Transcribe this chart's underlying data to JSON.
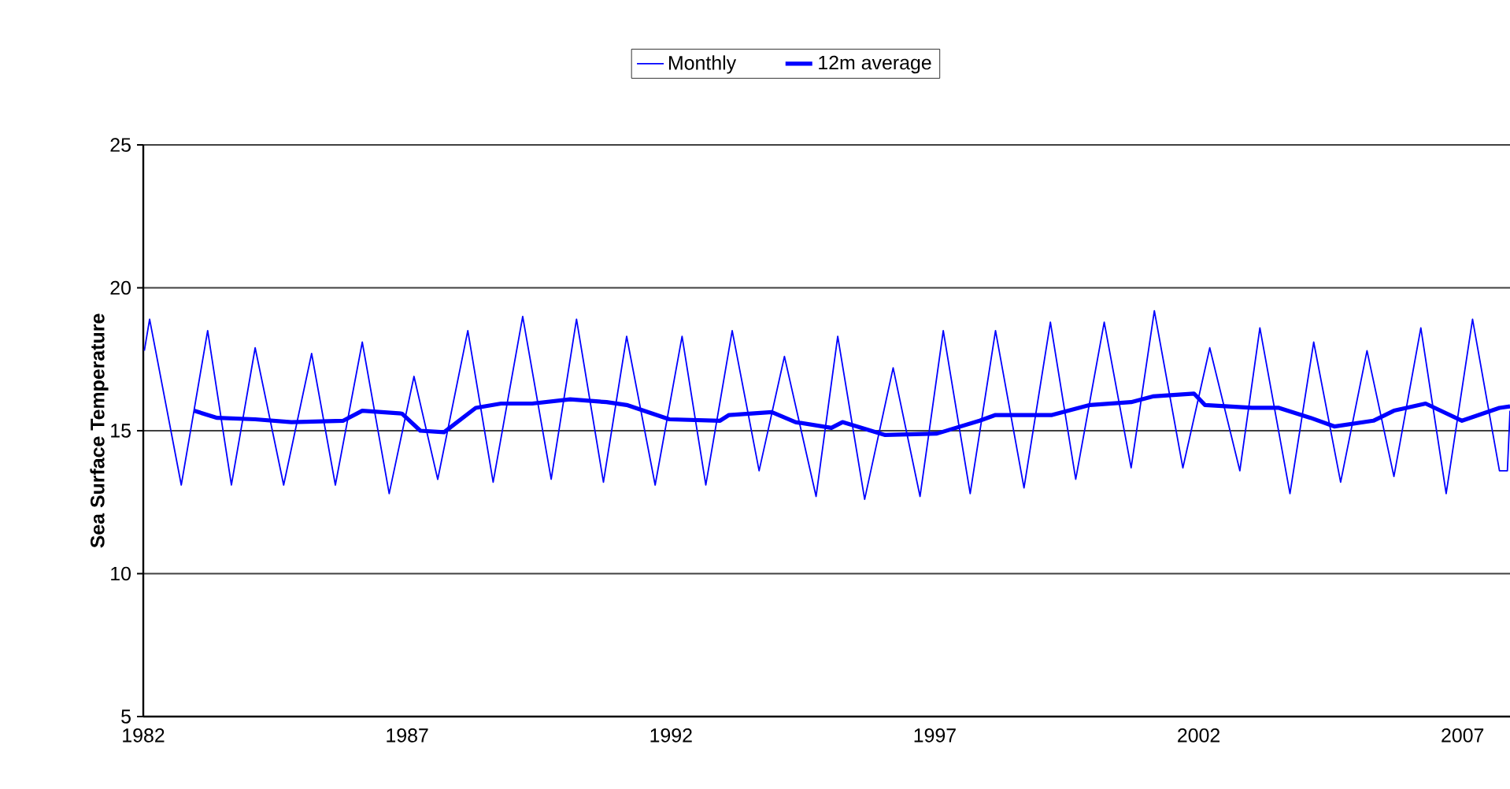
{
  "chart_data": {
    "type": "line",
    "ylabel": "Sea Surface Temperature",
    "xlim": [
      1982,
      2007.9
    ],
    "xticks": [
      1982,
      1987,
      1992,
      1997,
      2002,
      2007
    ],
    "ylim": [
      5,
      25
    ],
    "yticks": [
      5,
      10,
      15,
      20,
      25
    ],
    "grid": "y",
    "legend": "top",
    "marker": "none",
    "line_style": "solid",
    "series": [
      {
        "name": "Monthly",
        "color": "#0000ff",
        "x": [
          1982.02,
          1982.12,
          1982.72,
          1983.22,
          1983.67,
          1984.12,
          1984.66,
          1985.19,
          1985.64,
          1986.15,
          1986.66,
          1987.13,
          1987.58,
          1988.15,
          1988.63,
          1989.19,
          1989.73,
          1990.21,
          1990.72,
          1991.16,
          1991.7,
          1992.21,
          1992.66,
          1993.16,
          1993.67,
          1994.15,
          1994.75,
          1995.16,
          1995.67,
          1996.21,
          1996.72,
          1997.16,
          1997.67,
          1998.15,
          1998.69,
          1999.19,
          1999.67,
          2000.21,
          2000.72,
          2001.16,
          2001.7,
          2002.21,
          2002.78,
          2003.16,
          2003.73,
          2004.18,
          2004.69,
          2005.19,
          2005.7,
          2006.21,
          2006.69,
          2007.19,
          2007.7,
          2007.85,
          2007.9
        ],
        "values": [
          17.8,
          18.9,
          13.1,
          18.5,
          13.1,
          17.9,
          13.1,
          17.7,
          13.1,
          18.1,
          12.8,
          16.9,
          13.3,
          18.5,
          13.2,
          19.0,
          13.3,
          18.9,
          13.2,
          18.3,
          13.1,
          18.3,
          13.1,
          18.5,
          13.6,
          17.6,
          12.7,
          18.3,
          12.6,
          17.2,
          12.7,
          18.5,
          12.8,
          18.5,
          13.0,
          18.8,
          13.3,
          18.8,
          13.7,
          19.2,
          13.7,
          17.9,
          13.6,
          18.6,
          12.8,
          18.1,
          13.2,
          17.8,
          13.4,
          18.6,
          12.8,
          18.9,
          13.6,
          13.6,
          15.7
        ]
      },
      {
        "name": "12m average",
        "color": "#0000ff",
        "x": [
          1982.96,
          1983.4,
          1984.12,
          1984.81,
          1985.79,
          1986.15,
          1986.9,
          1987.25,
          1987.7,
          1988.3,
          1988.78,
          1989.37,
          1990.09,
          1990.78,
          1991.16,
          1991.97,
          1992.93,
          1993.1,
          1993.91,
          1994.36,
          1995.04,
          1995.25,
          1996.06,
          1997.04,
          1997.85,
          1998.15,
          1999.22,
          1999.94,
          2000.72,
          2001.13,
          2001.91,
          2002.12,
          2003.01,
          2003.52,
          2004.12,
          2004.57,
          2005.31,
          2005.7,
          2006.3,
          2006.99,
          2007.7,
          2007.9
        ],
        "values": [
          15.7,
          15.45,
          15.4,
          15.3,
          15.35,
          15.7,
          15.6,
          15.0,
          14.95,
          15.8,
          15.95,
          15.95,
          16.1,
          16.0,
          15.9,
          15.4,
          15.35,
          15.55,
          15.65,
          15.3,
          15.1,
          15.3,
          14.85,
          14.9,
          15.35,
          15.55,
          15.55,
          15.9,
          16.0,
          16.2,
          16.3,
          15.9,
          15.8,
          15.8,
          15.45,
          15.15,
          15.35,
          15.7,
          15.95,
          15.35,
          15.8,
          15.85
        ]
      }
    ]
  }
}
